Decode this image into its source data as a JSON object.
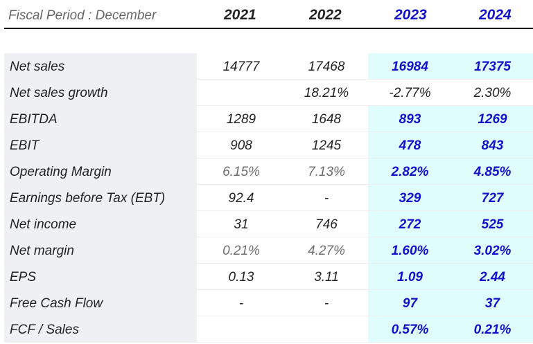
{
  "header": {
    "label": "Fiscal Period : December",
    "years": [
      "2021",
      "2022",
      "2023",
      "2024"
    ],
    "colors": {
      "actual": "#222222",
      "estimate": "#1111cc"
    }
  },
  "rows": [
    {
      "label": "Net sales",
      "values": [
        "14777",
        "17468",
        "16984",
        "17375"
      ]
    },
    {
      "label": "Net sales growth",
      "values": [
        "",
        "18.21%",
        "-2.77%",
        "2.30%"
      ]
    },
    {
      "label": "EBITDA",
      "values": [
        "1289",
        "1648",
        "893",
        "1269"
      ]
    },
    {
      "label": "EBIT",
      "values": [
        "908",
        "1245",
        "478",
        "843"
      ]
    },
    {
      "label": "Operating Margin",
      "values": [
        "6.15%",
        "7.13%",
        "2.82%",
        "4.85%"
      ]
    },
    {
      "label": "Earnings before Tax (EBT)",
      "values": [
        "92.4",
        "-",
        "329",
        "727"
      ]
    },
    {
      "label": "Net income",
      "values": [
        "31",
        "746",
        "272",
        "525"
      ]
    },
    {
      "label": "Net margin",
      "values": [
        "0.21%",
        "4.27%",
        "1.60%",
        "3.02%"
      ]
    },
    {
      "label": "EPS",
      "values": [
        "0.13",
        "3.11",
        "1.09",
        "2.44"
      ]
    },
    {
      "label": "Free Cash Flow",
      "values": [
        "-",
        "-",
        "97",
        "37"
      ]
    },
    {
      "label": "FCF / Sales",
      "values": [
        "",
        "",
        "0.57%",
        "0.21%"
      ]
    }
  ]
}
